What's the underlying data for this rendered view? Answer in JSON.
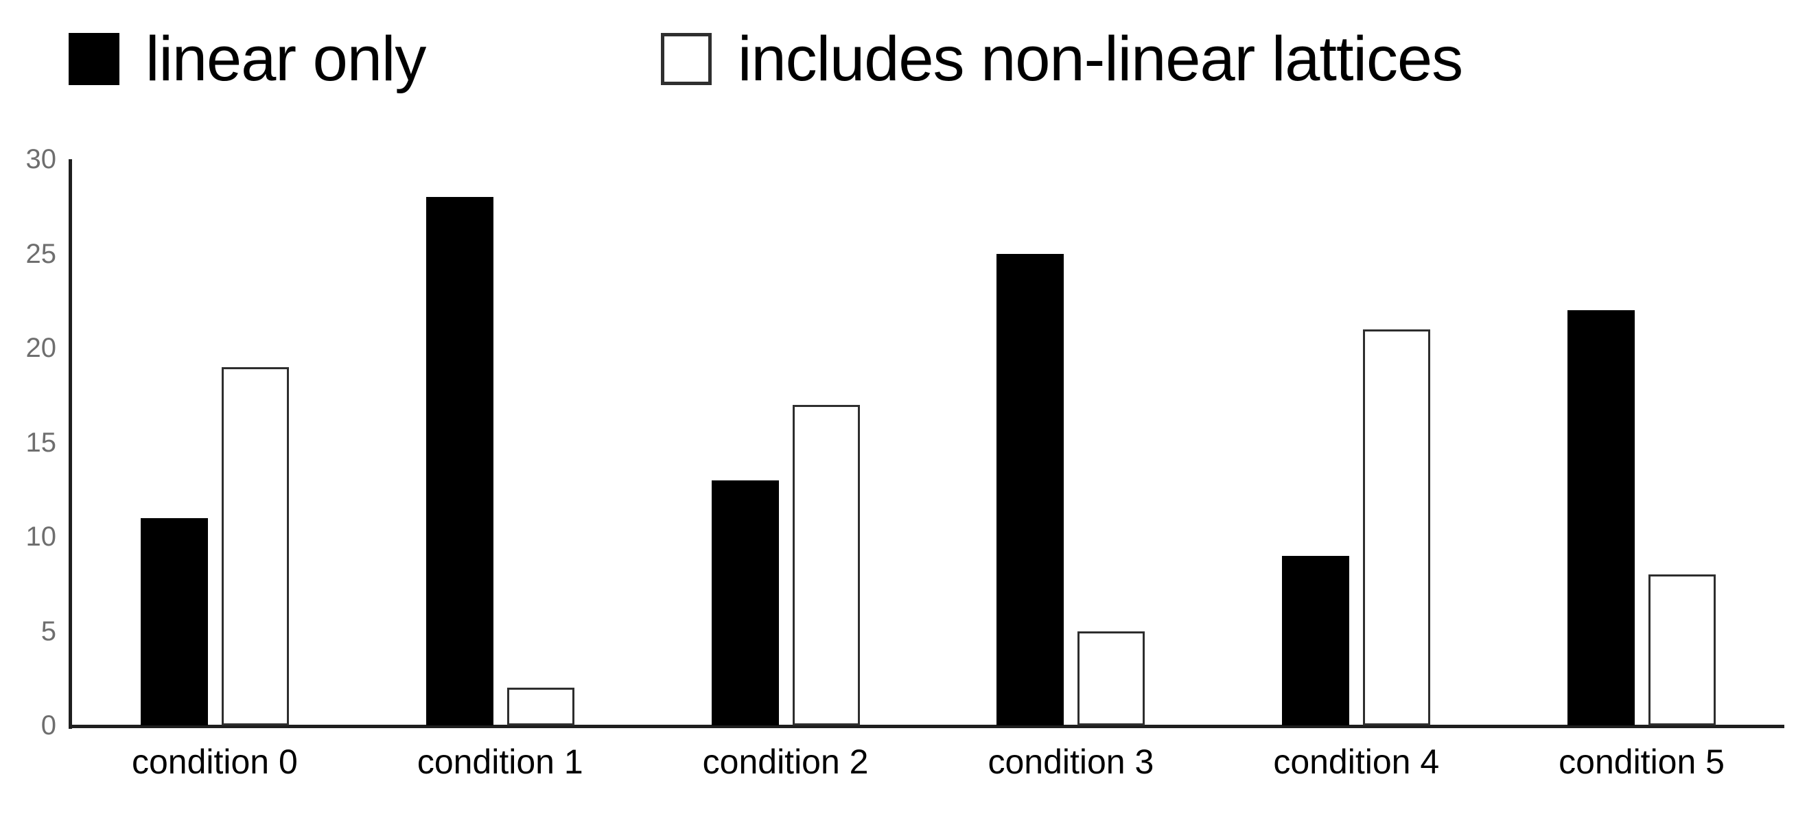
{
  "chart_data": {
    "type": "bar",
    "title": "",
    "xlabel": "",
    "ylabel": "",
    "categories": [
      "condition 0",
      "condition 1",
      "condition 2",
      "condition 3",
      "condition 4",
      "condition 5"
    ],
    "series": [
      {
        "name": "linear only",
        "style": "filled",
        "color": "#000000",
        "values": [
          11,
          28,
          13,
          25,
          9,
          22
        ]
      },
      {
        "name": "includes non-linear lattices",
        "style": "outlined",
        "color": "#ffffff",
        "values": [
          19,
          2,
          17,
          5,
          21,
          8
        ]
      }
    ],
    "ylim": [
      0,
      30
    ],
    "ytick_step": 5,
    "ytick_labels": [
      "0",
      "5",
      "10",
      "15",
      "20",
      "25",
      "30"
    ],
    "grid": false,
    "legend_position": "top",
    "colors": {
      "axis": "#1f1f1f",
      "ytick_label": "#6e6e6e",
      "xtick_label": "#000000",
      "bar_fill": "#000000",
      "bar_outline": "#2e2e2e",
      "background": "#ffffff"
    }
  }
}
